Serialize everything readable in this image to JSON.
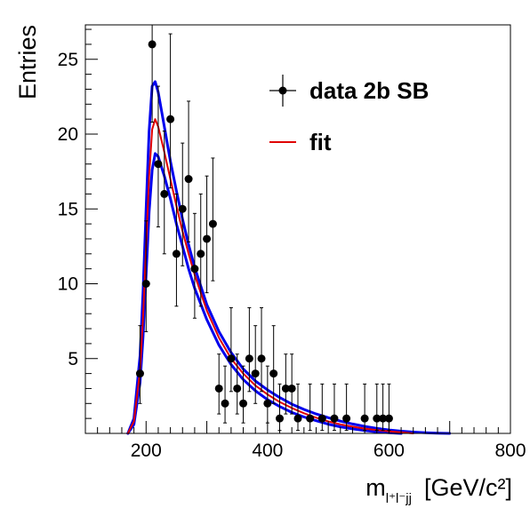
{
  "chart_data": {
    "type": "scatter",
    "title": "",
    "xlabel": {
      "main": "m",
      "sub": "l⁺l⁻jj",
      "unit": "[GeV/c²]"
    },
    "ylabel": "Entries",
    "xlim": [
      100,
      800
    ],
    "ylim": [
      0,
      27.3
    ],
    "x_ticks": [
      200,
      400,
      600,
      800
    ],
    "y_ticks": [
      5,
      10,
      15,
      20,
      25
    ],
    "grid": false,
    "legend_position": "top-right",
    "series": [
      {
        "name": "data 2b SB",
        "kind": "points-with-errors",
        "color": "#000000",
        "points": [
          {
            "x": 190,
            "y": 4
          },
          {
            "x": 200,
            "y": 10
          },
          {
            "x": 210,
            "y": 26
          },
          {
            "x": 220,
            "y": 18
          },
          {
            "x": 230,
            "y": 16
          },
          {
            "x": 240,
            "y": 21
          },
          {
            "x": 250,
            "y": 12
          },
          {
            "x": 260,
            "y": 15
          },
          {
            "x": 270,
            "y": 17
          },
          {
            "x": 280,
            "y": 11
          },
          {
            "x": 290,
            "y": 12
          },
          {
            "x": 300,
            "y": 13
          },
          {
            "x": 310,
            "y": 14
          },
          {
            "x": 320,
            "y": 3
          },
          {
            "x": 330,
            "y": 2
          },
          {
            "x": 340,
            "y": 5
          },
          {
            "x": 350,
            "y": 3
          },
          {
            "x": 360,
            "y": 2
          },
          {
            "x": 370,
            "y": 5
          },
          {
            "x": 380,
            "y": 4
          },
          {
            "x": 390,
            "y": 5
          },
          {
            "x": 400,
            "y": 2
          },
          {
            "x": 410,
            "y": 4
          },
          {
            "x": 420,
            "y": 1
          },
          {
            "x": 430,
            "y": 3
          },
          {
            "x": 440,
            "y": 3
          },
          {
            "x": 450,
            "y": 1
          },
          {
            "x": 470,
            "y": 1
          },
          {
            "x": 490,
            "y": 1
          },
          {
            "x": 510,
            "y": 1
          },
          {
            "x": 530,
            "y": 1
          },
          {
            "x": 560,
            "y": 1
          },
          {
            "x": 580,
            "y": 1
          },
          {
            "x": 590,
            "y": 1
          },
          {
            "x": 600,
            "y": 1
          }
        ]
      },
      {
        "name": "fit",
        "kind": "line",
        "color": "#e00000",
        "x": [
          170,
          180,
          190,
          195,
          200,
          205,
          210,
          215,
          220,
          230,
          240,
          250,
          260,
          270,
          280,
          300,
          320,
          340,
          360,
          380,
          400,
          420,
          440,
          460,
          480,
          500,
          520,
          540,
          560,
          580,
          600,
          620,
          640
        ],
        "y": [
          0,
          0.8,
          4.2,
          7.8,
          12.5,
          17.2,
          20.3,
          21.0,
          20.5,
          18.8,
          17.0,
          15.2,
          13.5,
          12.0,
          10.6,
          8.2,
          6.4,
          5.0,
          4.0,
          3.2,
          2.6,
          2.1,
          1.7,
          1.35,
          1.05,
          0.8,
          0.6,
          0.45,
          0.32,
          0.22,
          0.14,
          0.07,
          0
        ]
      },
      {
        "name": "",
        "kind": "band-upper",
        "color": "#0000ee",
        "x": [
          170,
          180,
          190,
          195,
          200,
          205,
          210,
          215,
          220,
          230,
          240,
          250,
          260,
          270,
          280,
          300,
          320,
          340,
          360,
          380,
          400,
          420,
          440,
          460,
          480,
          500,
          520,
          540,
          560,
          580,
          600,
          620,
          640,
          660,
          680,
          700
        ],
        "y": [
          0,
          1.0,
          5.2,
          9.5,
          15.0,
          20.2,
          23.2,
          23.5,
          22.8,
          20.5,
          18.2,
          16.2,
          14.3,
          12.6,
          11.1,
          8.6,
          6.8,
          5.4,
          4.3,
          3.5,
          2.9,
          2.4,
          1.95,
          1.6,
          1.3,
          1.05,
          0.82,
          0.63,
          0.47,
          0.34,
          0.23,
          0.15,
          0.09,
          0.05,
          0.02,
          0
        ]
      },
      {
        "name": "",
        "kind": "band-lower",
        "color": "#0000ee",
        "x": [
          170,
          180,
          190,
          195,
          200,
          205,
          210,
          215,
          220,
          230,
          240,
          250,
          260,
          270,
          280,
          300,
          320,
          340,
          360,
          380,
          400,
          420,
          440,
          460,
          480,
          500,
          520,
          540,
          560,
          580,
          600,
          620
        ],
        "y": [
          0,
          0.6,
          3.4,
          6.5,
          10.6,
          14.8,
          17.6,
          18.7,
          18.5,
          17.2,
          15.7,
          14.0,
          12.5,
          11.0,
          9.7,
          7.6,
          5.9,
          4.6,
          3.6,
          2.85,
          2.25,
          1.8,
          1.4,
          1.1,
          0.85,
          0.62,
          0.44,
          0.3,
          0.19,
          0.1,
          0.04,
          0
        ]
      }
    ],
    "error_bars": [
      {
        "x": 190,
        "lo": 2,
        "hi": 7.2
      },
      {
        "x": 200,
        "lo": 6.8,
        "hi": 14.2
      },
      {
        "x": 210,
        "lo": 20.8,
        "hi": 27.3
      },
      {
        "x": 220,
        "lo": 13.8,
        "hi": 23.2
      },
      {
        "x": 230,
        "lo": 12,
        "hi": 20.2
      },
      {
        "x": 240,
        "lo": 16.4,
        "hi": 26.7
      },
      {
        "x": 250,
        "lo": 8.5,
        "hi": 16
      },
      {
        "x": 260,
        "lo": 11.2,
        "hi": 19.4
      },
      {
        "x": 270,
        "lo": 12.8,
        "hi": 22.2
      },
      {
        "x": 280,
        "lo": 7.7,
        "hi": 14.7
      },
      {
        "x": 290,
        "lo": 8.5,
        "hi": 16
      },
      {
        "x": 300,
        "lo": 9.4,
        "hi": 17.2
      },
      {
        "x": 310,
        "lo": 10.2,
        "hi": 18.4
      },
      {
        "x": 320,
        "lo": 1.3,
        "hi": 5.3
      },
      {
        "x": 330,
        "lo": 0.7,
        "hi": 4.5
      },
      {
        "x": 340,
        "lo": 2.8,
        "hi": 8.4
      },
      {
        "x": 350,
        "lo": 1.3,
        "hi": 5.3
      },
      {
        "x": 360,
        "lo": 0.7,
        "hi": 4.5
      },
      {
        "x": 370,
        "lo": 2.8,
        "hi": 8.4
      },
      {
        "x": 380,
        "lo": 2,
        "hi": 7.2
      },
      {
        "x": 390,
        "lo": 2.8,
        "hi": 8.4
      },
      {
        "x": 400,
        "lo": 0.7,
        "hi": 4.5
      },
      {
        "x": 410,
        "lo": 2,
        "hi": 7.2
      },
      {
        "x": 420,
        "lo": 0.2,
        "hi": 3.3
      },
      {
        "x": 430,
        "lo": 1.3,
        "hi": 5.3
      },
      {
        "x": 440,
        "lo": 1.3,
        "hi": 5.3
      },
      {
        "x": 450,
        "lo": 0.2,
        "hi": 3.3
      },
      {
        "x": 470,
        "lo": 0.2,
        "hi": 3.3
      },
      {
        "x": 490,
        "lo": 0.2,
        "hi": 3.3
      },
      {
        "x": 510,
        "lo": 0.2,
        "hi": 3.3
      },
      {
        "x": 530,
        "lo": 0.2,
        "hi": 3.3
      },
      {
        "x": 560,
        "lo": 0.2,
        "hi": 3.3
      },
      {
        "x": 580,
        "lo": 0.2,
        "hi": 3.3
      },
      {
        "x": 590,
        "lo": 0.2,
        "hi": 3.3
      },
      {
        "x": 600,
        "lo": 0.2,
        "hi": 3.3
      }
    ]
  }
}
